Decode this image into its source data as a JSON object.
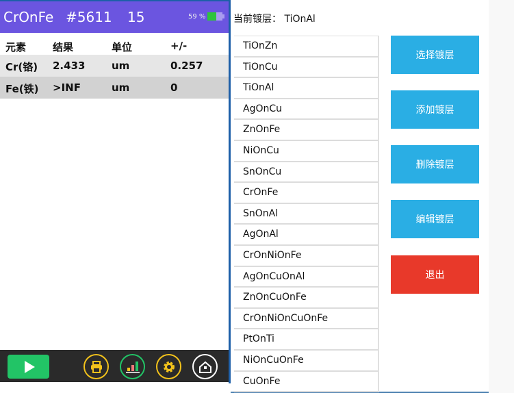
{
  "header": {
    "coating": "CrOnFe",
    "id": "#5611",
    "count": "15",
    "battery": "59 %",
    "battery_level": 59
  },
  "table": {
    "columns": [
      "元素",
      "结果",
      "单位",
      "+/-"
    ],
    "rows": [
      [
        "Cr(铬)",
        "2.433",
        "um",
        "0.257"
      ],
      [
        "Fe(铁)",
        ">INF",
        "um",
        "0"
      ]
    ]
  },
  "toolbar": {
    "icons": [
      "play-icon",
      "printer-icon",
      "chart-icon",
      "gear-icon",
      "home-icon"
    ]
  },
  "current": {
    "label": "当前镀层：",
    "value": "TiOnAl"
  },
  "coatings": [
    "TiOnZn",
    "TiOnCu",
    "TiOnAl",
    "AgOnCu",
    "ZnOnFe",
    "NiOnCu",
    "SnOnCu",
    "CrOnFe",
    "SnOnAl",
    "AgOnAl",
    "CrOnNiOnFe",
    "AgOnCuOnAl",
    "ZnOnCuOnFe",
    "CrOnNiOnCuOnFe",
    "PtOnTi",
    "NiOnCuOnFe",
    "CuOnFe"
  ],
  "buttons": {
    "select": "选择镀层",
    "add": "添加镀层",
    "delete": "删除镀层",
    "edit": "编辑镀层",
    "exit": "退出"
  },
  "colors": {
    "header": "#6b55e0",
    "button": "#2aaee4",
    "exit": "#e8392a"
  }
}
